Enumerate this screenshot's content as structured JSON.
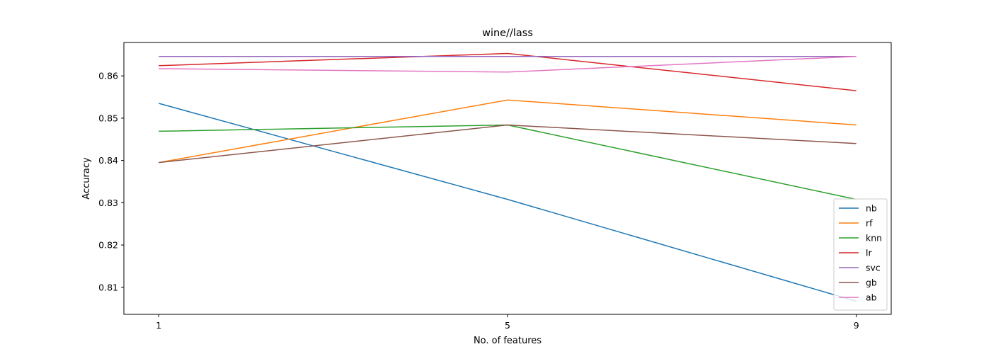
{
  "chart_data": {
    "type": "line",
    "title": "wine//lass",
    "xlabel": "No. of features",
    "ylabel": "Accuracy",
    "x": [
      1,
      5,
      9
    ],
    "x_ticks": [
      "1",
      "5",
      "9"
    ],
    "y_ticks": [
      "0.81",
      "0.82",
      "0.83",
      "0.84",
      "0.85",
      "0.86"
    ],
    "xlim": [
      0.6,
      9.4
    ],
    "ylim": [
      0.8036,
      0.8679
    ],
    "grid": false,
    "legend_position": "lower-right",
    "series": [
      {
        "name": "nb",
        "color": "#1f77b4",
        "values": [
          0.8535,
          0.8308,
          0.8067
        ]
      },
      {
        "name": "rf",
        "color": "#ff7f0e",
        "values": [
          0.8395,
          0.8543,
          0.8484
        ]
      },
      {
        "name": "knn",
        "color": "#2ca02c",
        "values": [
          0.8469,
          0.8484,
          0.8308
        ]
      },
      {
        "name": "lr",
        "color": "#d62728",
        "values": [
          0.8624,
          0.8653,
          0.8565
        ]
      },
      {
        "name": "svc",
        "color": "#9467bd",
        "values": [
          0.8646,
          0.8646,
          0.8646
        ]
      },
      {
        "name": "gb",
        "color": "#8c564b",
        "values": [
          0.8395,
          0.8484,
          0.844
        ]
      },
      {
        "name": "ab",
        "color": "#e377c2",
        "values": [
          0.8617,
          0.8609,
          0.8646
        ]
      }
    ]
  }
}
